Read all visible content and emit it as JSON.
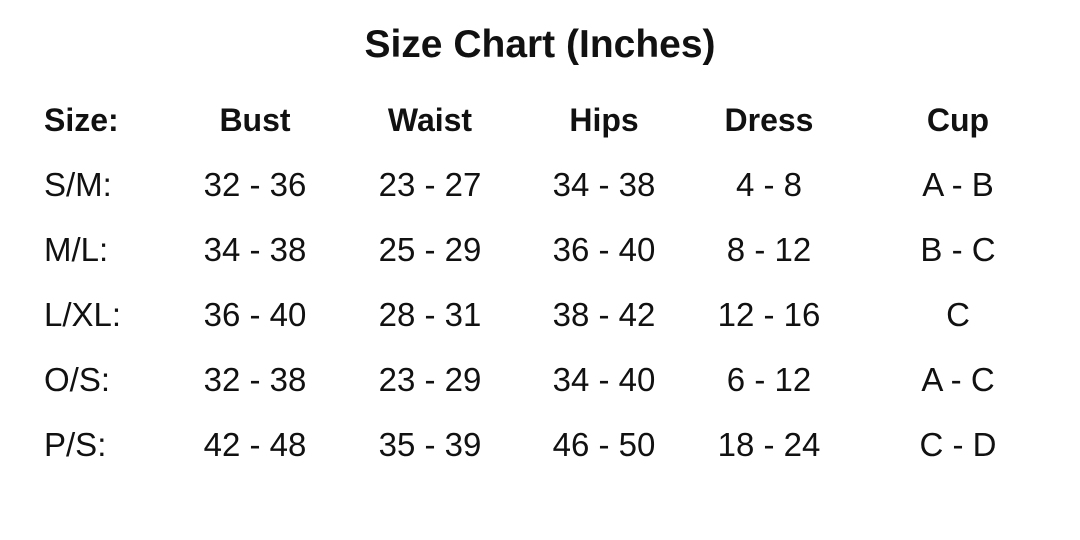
{
  "title": "Size Chart (Inches)",
  "table": {
    "headers": [
      "Size:",
      "Bust",
      "Waist",
      "Hips",
      "Dress",
      "Cup"
    ],
    "rows": [
      [
        "S/M:",
        "32 - 36",
        "23 - 27",
        "34 - 38",
        "4 - 8",
        "A - B"
      ],
      [
        "M/L:",
        "34 - 38",
        "25 - 29",
        "36 - 40",
        "8 - 12",
        "B - C"
      ],
      [
        "L/XL:",
        "36 - 40",
        "28 - 31",
        "38 - 42",
        "12 - 16",
        "C"
      ],
      [
        "O/S:",
        "32 - 38",
        "23 - 29",
        "34 - 40",
        "6 - 12",
        "A - C"
      ],
      [
        "P/S:",
        "42 - 48",
        "35 - 39",
        "46 - 50",
        "18 - 24",
        "C - D"
      ]
    ]
  }
}
